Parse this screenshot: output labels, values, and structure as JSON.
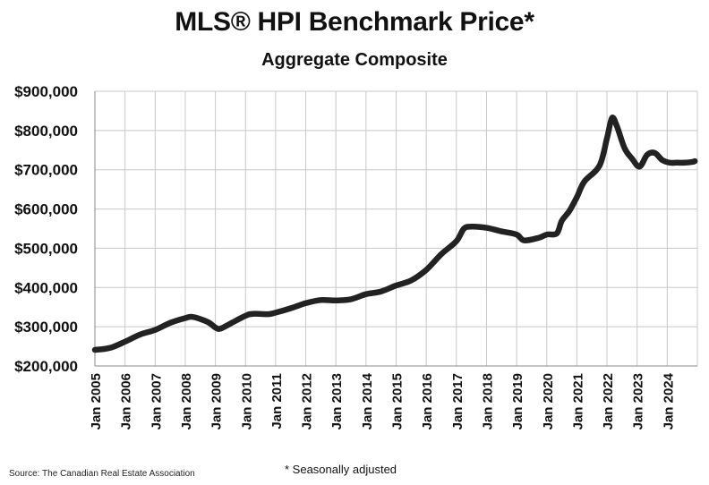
{
  "chart_data": {
    "type": "line",
    "title": "MLS® HPI Benchmark Price*",
    "subtitle": "Aggregate Composite",
    "footnote": "* Seasonally adjusted",
    "source": "Source: The Canadian Real Estate Association",
    "ylim": [
      200000,
      900000
    ],
    "y_ticks": [
      "$200,000",
      "$300,000",
      "$400,000",
      "$500,000",
      "$600,000",
      "$700,000",
      "$800,000",
      "$900,000"
    ],
    "x_ticks": [
      "Jan 2005",
      "Jan 2006",
      "Jan 2007",
      "Jan 2008",
      "Jan 2009",
      "Jan 2010",
      "Jan 2011",
      "Jan 2012",
      "Jan 2013",
      "Jan 2014",
      "Jan 2015",
      "Jan 2016",
      "Jan 2017",
      "Jan 2018",
      "Jan 2019",
      "Jan 2020",
      "Jan 2021",
      "Jan 2022",
      "Jan 2023",
      "Jan 2024"
    ],
    "grid": true,
    "line_color": "#222222",
    "series": [
      {
        "x": [
          "2005-01",
          "2005-07",
          "2006-01",
          "2006-07",
          "2007-01",
          "2007-07",
          "2008-01",
          "2008-04",
          "2008-10",
          "2009-01",
          "2009-03",
          "2009-07",
          "2010-01",
          "2010-04",
          "2010-10",
          "2011-01",
          "2011-07",
          "2012-01",
          "2012-07",
          "2013-01",
          "2013-07",
          "2014-01",
          "2014-07",
          "2015-01",
          "2015-07",
          "2016-01",
          "2016-07",
          "2017-01",
          "2017-04",
          "2017-07",
          "2018-01",
          "2018-07",
          "2019-01",
          "2019-04",
          "2019-10",
          "2020-01",
          "2020-05",
          "2020-07",
          "2020-10",
          "2021-01",
          "2021-04",
          "2021-10",
          "2022-01",
          "2022-03",
          "2022-05",
          "2022-08",
          "2022-11",
          "2023-02",
          "2023-05",
          "2023-08",
          "2023-11",
          "2024-02",
          "2024-05",
          "2024-08",
          "2024-11",
          "2024-12"
        ],
        "values": [
          241000,
          246000,
          262000,
          280000,
          292000,
          310000,
          322000,
          325000,
          312000,
          298000,
          295000,
          308000,
          328000,
          333000,
          332000,
          336000,
          347000,
          360000,
          368000,
          367000,
          370000,
          383000,
          390000,
          405000,
          418000,
          445000,
          485000,
          518000,
          550000,
          555000,
          552000,
          543000,
          535000,
          520000,
          527000,
          535000,
          538000,
          570000,
          595000,
          630000,
          670000,
          710000,
          780000,
          832000,
          810000,
          755000,
          728000,
          708000,
          738000,
          743000,
          725000,
          718000,
          718000,
          718000,
          720000,
          722000
        ]
      }
    ]
  }
}
